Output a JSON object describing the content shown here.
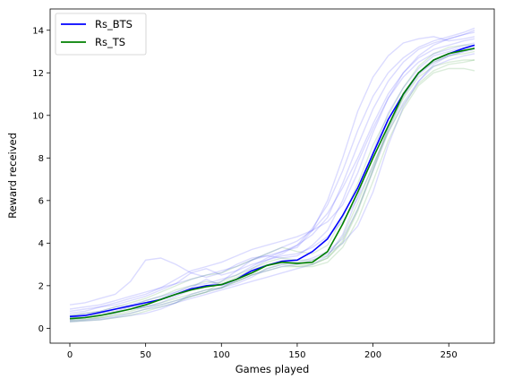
{
  "chart_data": {
    "type": "line",
    "title": "",
    "xlabel": "Games played",
    "ylabel": "Reward received",
    "xlim": [
      -13,
      280
    ],
    "ylim": [
      -0.7,
      15
    ],
    "xticks": [
      0,
      50,
      100,
      150,
      200,
      250
    ],
    "yticks": [
      0,
      2,
      4,
      6,
      8,
      10,
      12,
      14
    ],
    "grid": false,
    "legend_position": "top-left",
    "series": [
      {
        "name": "Rs_BTS",
        "color": "#0000ff",
        "x": [
          0,
          10,
          20,
          30,
          40,
          50,
          60,
          70,
          80,
          90,
          100,
          110,
          120,
          130,
          140,
          150,
          160,
          170,
          180,
          190,
          200,
          210,
          220,
          230,
          240,
          250,
          260,
          267
        ],
        "y": [
          0.55,
          0.6,
          0.75,
          0.9,
          1.05,
          1.2,
          1.35,
          1.6,
          1.85,
          2.0,
          2.05,
          2.3,
          2.7,
          2.95,
          3.15,
          3.2,
          3.6,
          4.2,
          5.3,
          6.6,
          8.2,
          9.8,
          11.0,
          12.0,
          12.6,
          12.9,
          13.15,
          13.3
        ]
      },
      {
        "name": "Rs_TS",
        "color": "#008000",
        "x": [
          0,
          10,
          20,
          30,
          40,
          50,
          60,
          70,
          80,
          90,
          100,
          110,
          120,
          130,
          140,
          150,
          160,
          170,
          180,
          190,
          200,
          210,
          220,
          230,
          240,
          250,
          260,
          267
        ],
        "y": [
          0.45,
          0.5,
          0.6,
          0.75,
          0.9,
          1.1,
          1.35,
          1.6,
          1.8,
          1.95,
          2.05,
          2.3,
          2.6,
          2.95,
          3.1,
          3.05,
          3.1,
          3.6,
          4.9,
          6.4,
          8.0,
          9.5,
          11.0,
          12.0,
          12.6,
          12.9,
          13.05,
          13.15
        ]
      }
    ],
    "individual_runs": {
      "x": [
        0,
        10,
        20,
        30,
        40,
        50,
        60,
        70,
        80,
        90,
        100,
        110,
        120,
        130,
        140,
        150,
        160,
        170,
        180,
        190,
        200,
        210,
        220,
        230,
        240,
        250,
        260,
        267
      ],
      "blue": [
        [
          1.1,
          1.2,
          1.4,
          1.6,
          2.2,
          3.2,
          3.3,
          3.0,
          2.6,
          2.4,
          2.6,
          3.0,
          3.3,
          3.4,
          3.6,
          3.8,
          4.6,
          6.0,
          8.0,
          10.2,
          11.8,
          12.8,
          13.4,
          13.6,
          13.7,
          13.5,
          13.6,
          13.7
        ],
        [
          0.4,
          0.5,
          0.6,
          0.7,
          0.9,
          1.0,
          1.2,
          1.5,
          1.8,
          2.0,
          2.2,
          2.7,
          3.2,
          3.4,
          3.3,
          3.4,
          3.9,
          4.6,
          6.0,
          7.8,
          9.4,
          10.8,
          11.8,
          12.5,
          12.9,
          13.1,
          13.3,
          13.4
        ],
        [
          0.8,
          0.9,
          1.0,
          1.1,
          1.3,
          1.5,
          1.8,
          2.1,
          2.6,
          2.8,
          2.5,
          2.7,
          3.0,
          3.2,
          3.5,
          3.9,
          4.4,
          5.2,
          6.8,
          8.6,
          10.3,
          11.6,
          12.5,
          13.1,
          13.4,
          13.6,
          13.8,
          14.0
        ],
        [
          0.3,
          0.35,
          0.4,
          0.5,
          0.6,
          0.7,
          0.9,
          1.2,
          1.6,
          1.8,
          1.9,
          2.1,
          2.4,
          2.8,
          3.0,
          3.1,
          3.3,
          3.6,
          4.2,
          5.6,
          7.4,
          9.2,
          10.6,
          11.6,
          12.4,
          12.8,
          13.0,
          13.1
        ],
        [
          0.6,
          0.7,
          0.8,
          1.0,
          1.1,
          1.3,
          1.5,
          1.7,
          2.0,
          2.1,
          2.3,
          2.5,
          2.9,
          3.3,
          3.6,
          3.9,
          4.7,
          5.8,
          7.4,
          9.3,
          10.9,
          12.0,
          12.7,
          13.2,
          13.5,
          13.7,
          13.9,
          14.1
        ],
        [
          0.5,
          0.55,
          0.7,
          0.8,
          1.0,
          1.1,
          1.4,
          1.7,
          1.9,
          2.3,
          2.0,
          2.2,
          2.5,
          2.7,
          2.9,
          3.0,
          3.2,
          3.5,
          4.0,
          4.8,
          6.4,
          8.6,
          10.4,
          11.6,
          12.3,
          12.6,
          12.8,
          12.9
        ],
        [
          0.7,
          0.8,
          1.0,
          1.2,
          1.4,
          1.6,
          1.9,
          2.3,
          2.7,
          2.9,
          3.1,
          3.4,
          3.7,
          3.9,
          4.1,
          4.3,
          4.6,
          5.0,
          5.8,
          7.3,
          9.2,
          10.8,
          12.0,
          12.8,
          13.3,
          13.6,
          13.8,
          13.9
        ],
        [
          0.35,
          0.4,
          0.45,
          0.55,
          0.7,
          0.9,
          1.0,
          1.2,
          1.4,
          1.6,
          1.8,
          2.0,
          2.2,
          2.4,
          2.6,
          2.8,
          3.0,
          3.4,
          4.4,
          6.2,
          8.3,
          10.1,
          11.3,
          12.2,
          12.8,
          13.0,
          13.2,
          13.3
        ],
        [
          0.9,
          1.0,
          1.1,
          1.3,
          1.5,
          1.7,
          1.9,
          2.1,
          2.3,
          2.5,
          2.7,
          2.9,
          3.2,
          3.5,
          3.8,
          4.1,
          4.6,
          5.4,
          6.6,
          8.0,
          9.6,
          11.0,
          12.0,
          12.7,
          13.1,
          13.3,
          13.5,
          13.6
        ],
        [
          0.45,
          0.5,
          0.6,
          0.75,
          0.9,
          1.0,
          1.1,
          1.3,
          1.5,
          1.7,
          1.9,
          2.3,
          2.8,
          3.2,
          3.4,
          3.5,
          3.8,
          4.3,
          5.0,
          6.1,
          7.6,
          9.4,
          10.9,
          11.9,
          12.5,
          12.8,
          13.0,
          13.2
        ]
      ],
      "green": [
        [
          0.3,
          0.35,
          0.4,
          0.5,
          0.6,
          0.8,
          1.0,
          1.2,
          1.5,
          1.7,
          1.9,
          2.2,
          2.5,
          2.8,
          3.0,
          2.9,
          3.0,
          3.3,
          4.0,
          5.5,
          7.4,
          9.3,
          10.8,
          11.8,
          12.3,
          12.5,
          12.6,
          12.6
        ],
        [
          0.6,
          0.7,
          0.8,
          1.0,
          1.2,
          1.4,
          1.7,
          2.0,
          2.3,
          2.5,
          2.6,
          2.9,
          3.2,
          3.5,
          3.8,
          3.6,
          3.5,
          3.9,
          5.2,
          6.8,
          8.6,
          10.0,
          11.3,
          12.3,
          12.9,
          13.2,
          13.3,
          13.3
        ],
        [
          0.4,
          0.45,
          0.5,
          0.6,
          0.7,
          0.9,
          1.1,
          1.3,
          1.5,
          1.7,
          2.2,
          2.5,
          2.8,
          3.1,
          3.3,
          3.2,
          3.2,
          3.4,
          4.3,
          5.9,
          7.7,
          9.2,
          10.5,
          11.5,
          12.1,
          12.4,
          12.5,
          12.6
        ],
        [
          0.5,
          0.6,
          0.7,
          0.9,
          1.0,
          1.3,
          1.5,
          1.8,
          2.0,
          2.2,
          2.1,
          2.4,
          2.7,
          3.0,
          3.1,
          3.0,
          3.0,
          3.3,
          4.1,
          5.6,
          7.5,
          9.4,
          10.9,
          12.0,
          12.5,
          12.8,
          12.9,
          13.0
        ],
        [
          0.35,
          0.4,
          0.5,
          0.65,
          0.8,
          1.0,
          1.2,
          1.4,
          1.6,
          1.8,
          1.9,
          2.2,
          2.5,
          2.7,
          2.9,
          2.9,
          2.9,
          3.1,
          3.8,
          5.1,
          6.9,
          8.8,
          10.3,
          11.4,
          12.0,
          12.2,
          12.2,
          12.1
        ]
      ]
    }
  }
}
